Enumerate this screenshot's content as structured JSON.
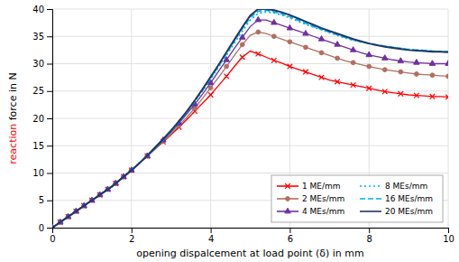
{
  "chart_data": {
    "type": "line",
    "xlabel": "opening dispalcement at load point (δ) in mm",
    "annotations": [
      {
        "text": "reaction",
        "color": "#ff0000"
      },
      {
        "text": " force in N",
        "color": "#000000"
      }
    ],
    "xlim": [
      0,
      10
    ],
    "ylim": [
      0,
      40
    ],
    "xticks": [
      0,
      2,
      4,
      6,
      8,
      10
    ],
    "yticks": [
      0,
      5,
      10,
      15,
      20,
      25,
      30,
      35,
      40
    ],
    "grid": true,
    "legend": "lower right",
    "x": [
      0,
      0.1,
      0.2,
      0.3,
      0.4,
      0.5,
      0.6,
      0.7,
      0.8,
      0.9,
      1.0,
      1.1,
      1.2,
      1.3,
      1.4,
      1.5,
      1.6,
      1.7,
      1.8,
      1.9,
      2.0,
      2.2,
      2.4,
      2.6,
      2.8,
      3.0,
      3.2,
      3.4,
      3.6,
      3.8,
      4.0,
      4.2,
      4.4,
      4.6,
      4.8,
      5.0,
      5.2,
      5.4,
      5.6,
      5.8,
      6.0,
      6.2,
      6.4,
      6.6,
      6.8,
      7.0,
      7.2,
      7.4,
      7.6,
      7.8,
      8.0,
      8.2,
      8.4,
      8.6,
      8.8,
      9.0,
      9.2,
      9.4,
      9.6,
      9.8,
      10.0
    ],
    "series": [
      {
        "name": "1 ME/mm",
        "color": "#ff0000",
        "line_style": "solid",
        "marker": "x",
        "values": [
          0,
          0.5,
          1.0,
          1.5,
          2.0,
          2.5,
          3.0,
          3.5,
          4.0,
          4.5,
          5.0,
          5.5,
          6.0,
          6.5,
          7.0,
          7.5,
          8.1,
          8.7,
          9.3,
          9.9,
          10.5,
          11.8,
          13.1,
          14.4,
          15.7,
          17.0,
          18.4,
          19.8,
          21.3,
          22.8,
          24.3,
          26.0,
          27.7,
          29.5,
          31.2,
          32.3,
          31.8,
          31.2,
          30.6,
          30.1,
          29.5,
          29.0,
          28.5,
          28.0,
          27.5,
          27.0,
          26.7,
          26.4,
          26.1,
          25.8,
          25.5,
          25.2,
          24.9,
          24.7,
          24.5,
          24.3,
          24.2,
          24.1,
          24.0,
          24.0,
          23.9
        ]
      },
      {
        "name": "2 MEs/mm",
        "color": "#b07060",
        "line_style": "solid",
        "marker": "circle",
        "values": [
          0,
          0.5,
          1.0,
          1.5,
          2.0,
          2.5,
          3.0,
          3.5,
          4.0,
          4.5,
          5.0,
          5.5,
          6.0,
          6.5,
          7.0,
          7.5,
          8.1,
          8.7,
          9.3,
          9.9,
          10.5,
          11.8,
          13.1,
          14.4,
          15.8,
          17.2,
          18.7,
          20.2,
          21.9,
          23.7,
          25.6,
          27.5,
          29.5,
          31.5,
          33.5,
          35.2,
          35.8,
          35.5,
          35.0,
          34.5,
          34.0,
          33.5,
          33.0,
          32.5,
          32.0,
          31.5,
          31.0,
          30.5,
          30.2,
          29.8,
          29.5,
          29.2,
          28.9,
          28.7,
          28.5,
          28.3,
          28.1,
          28.0,
          27.9,
          27.8,
          27.7
        ]
      },
      {
        "name": "4 MEs/mm",
        "color": "#7030a0",
        "line_style": "solid",
        "marker": "triangle",
        "values": [
          0,
          0.5,
          1.0,
          1.5,
          2.0,
          2.5,
          3.0,
          3.5,
          4.0,
          4.5,
          5.0,
          5.5,
          6.0,
          6.5,
          7.0,
          7.5,
          8.1,
          8.7,
          9.3,
          9.9,
          10.5,
          11.8,
          13.1,
          14.5,
          16.0,
          17.5,
          19.1,
          20.8,
          22.6,
          24.5,
          26.5,
          28.6,
          30.7,
          32.8,
          34.8,
          36.8,
          38.0,
          38.0,
          37.5,
          37.0,
          36.5,
          36.0,
          35.5,
          35.0,
          34.5,
          34.0,
          33.5,
          33.0,
          32.5,
          32.0,
          31.6,
          31.3,
          31.0,
          30.7,
          30.5,
          30.3,
          30.2,
          30.1,
          30.0,
          30.0,
          30.0
        ]
      },
      {
        "name": "8 MEs/mm",
        "color": "#00b0f0",
        "line_style": "dotted",
        "values": [
          0,
          0.5,
          1.0,
          1.5,
          2.0,
          2.5,
          3.0,
          3.5,
          4.0,
          4.5,
          5.0,
          5.5,
          6.0,
          6.5,
          7.0,
          7.5,
          8.1,
          8.7,
          9.3,
          9.9,
          10.5,
          11.8,
          13.2,
          14.6,
          16.1,
          17.7,
          19.4,
          21.2,
          23.1,
          25.1,
          27.2,
          29.4,
          31.6,
          33.8,
          36.0,
          38.0,
          39.2,
          39.5,
          39.3,
          38.9,
          38.4,
          37.8,
          37.2,
          36.7,
          36.2,
          35.7,
          35.2,
          34.7,
          34.3,
          34.0,
          33.7,
          33.4,
          33.2,
          33.0,
          32.8,
          32.6,
          32.5,
          32.4,
          32.3,
          32.2,
          32.1
        ]
      },
      {
        "name": "16 MEs/mm",
        "color": "#00b0f0",
        "line_style": "dashed",
        "values": [
          0,
          0.5,
          1.0,
          1.5,
          2.0,
          2.5,
          3.0,
          3.5,
          4.0,
          4.5,
          5.0,
          5.5,
          6.0,
          6.5,
          7.0,
          7.5,
          8.1,
          8.7,
          9.3,
          9.9,
          10.5,
          11.8,
          13.2,
          14.6,
          16.1,
          17.7,
          19.4,
          21.2,
          23.2,
          25.2,
          27.4,
          29.6,
          31.9,
          34.2,
          36.4,
          38.5,
          39.6,
          39.8,
          39.5,
          39.1,
          38.6,
          38.0,
          37.4,
          36.8,
          36.3,
          35.8,
          35.3,
          34.8,
          34.4,
          34.0,
          33.7,
          33.4,
          33.2,
          33.0,
          32.8,
          32.6,
          32.5,
          32.4,
          32.3,
          32.2,
          32.2
        ]
      },
      {
        "name": "20 MEs/mm",
        "color": "#1f3864",
        "line_style": "solid",
        "values": [
          0,
          0.5,
          1.0,
          1.5,
          2.0,
          2.5,
          3.0,
          3.5,
          4.0,
          4.5,
          5.0,
          5.5,
          6.0,
          6.5,
          7.0,
          7.5,
          8.1,
          8.7,
          9.3,
          9.9,
          10.5,
          11.8,
          13.2,
          14.7,
          16.2,
          17.8,
          19.5,
          21.3,
          23.3,
          25.4,
          27.6,
          29.8,
          32.1,
          34.4,
          36.7,
          38.8,
          40.0,
          40.0,
          39.8,
          39.4,
          38.9,
          38.3,
          37.7,
          37.1,
          36.5,
          36.0,
          35.5,
          35.0,
          34.5,
          34.1,
          33.7,
          33.4,
          33.1,
          32.9,
          32.7,
          32.5,
          32.4,
          32.3,
          32.2,
          32.2,
          32.1
        ]
      }
    ]
  }
}
